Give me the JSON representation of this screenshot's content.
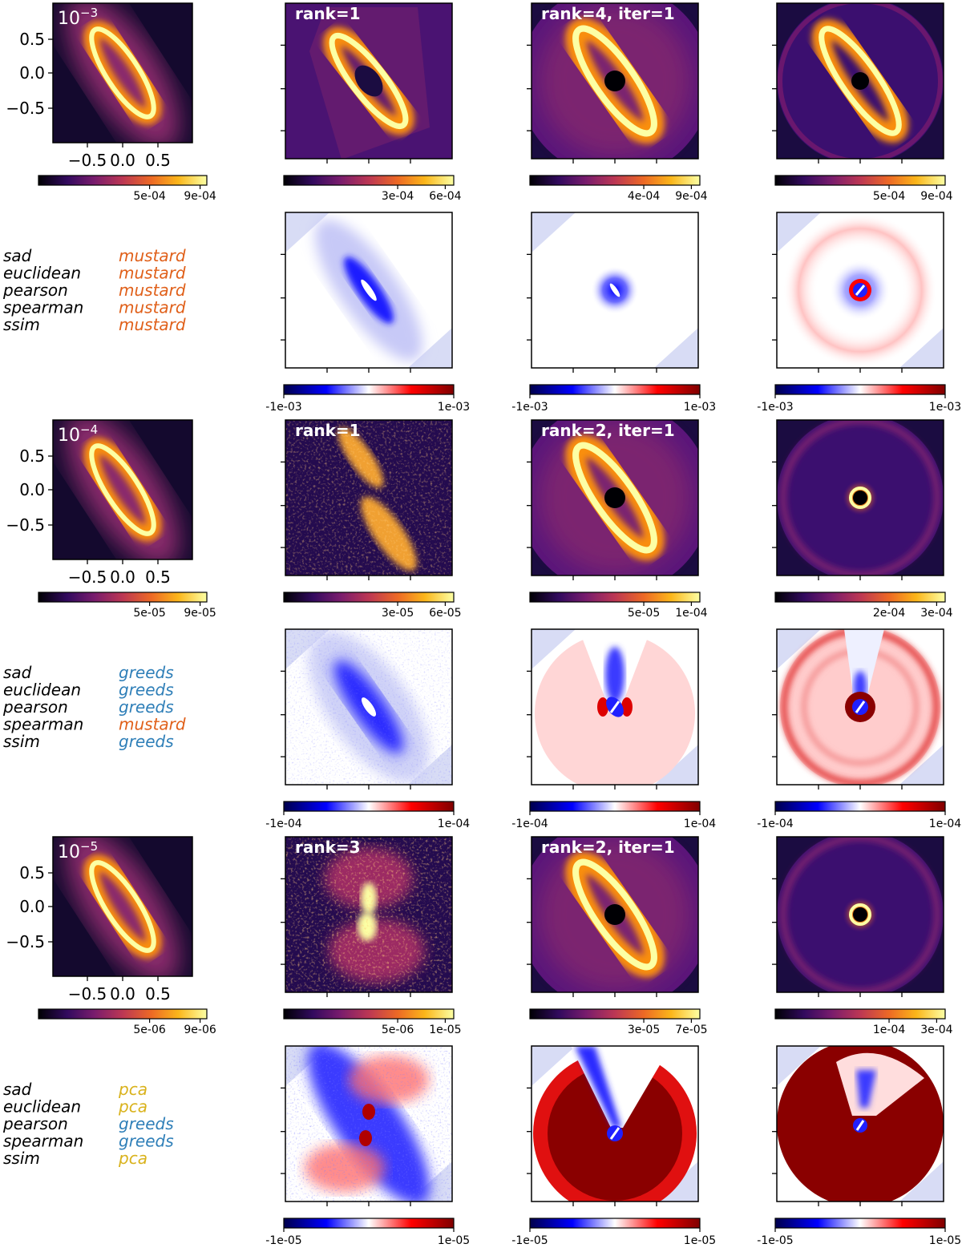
{
  "figure": {
    "rows": [
      {
        "ground_truth": {
          "label": "10",
          "exponent": "−3",
          "y_ticks": [
            "0.5",
            "0.0",
            "−0.5"
          ],
          "x_ticks": [
            "−0.5",
            "0.0",
            "0.5"
          ],
          "colorbar_ticks": [
            "5e-04",
            "9e-04"
          ]
        },
        "estimates": [
          {
            "label": "rank=1",
            "colorbar_ticks": [
              "3e-04",
              "6e-04"
            ],
            "style": "pca_wedge"
          },
          {
            "label": "rank=4, iter=1",
            "colorbar_ticks": [
              "4e-04",
              "9e-04"
            ],
            "style": "greeds_disk"
          },
          {
            "label": "",
            "colorbar_ticks": [
              "5e-04",
              "9e-04"
            ],
            "style": "mustard_disk"
          }
        ],
        "metric_choices": [
          {
            "metric": "sad",
            "winner": "mustard"
          },
          {
            "metric": "euclidean",
            "winner": "mustard"
          },
          {
            "metric": "pearson",
            "winner": "mustard"
          },
          {
            "metric": "spearman",
            "winner": "mustard"
          },
          {
            "metric": "ssim",
            "winner": "mustard"
          }
        ],
        "residual_colorbar_ticks": [
          "-1e-03",
          "1e-03"
        ],
        "residual_styles": [
          "res_pca_a",
          "res_greeds_a",
          "res_mustard_a"
        ]
      },
      {
        "ground_truth": {
          "label": "10",
          "exponent": "−4",
          "y_ticks": [
            "0.5",
            "0.0",
            "−0.5"
          ],
          "x_ticks": [
            "−0.5",
            "0.0",
            "0.5"
          ],
          "colorbar_ticks": [
            "5e-05",
            "9e-05"
          ]
        },
        "estimates": [
          {
            "label": "rank=1",
            "colorbar_ticks": [
              "3e-05",
              "6e-05"
            ],
            "style": "pca_noisy"
          },
          {
            "label": "rank=2, iter=1",
            "colorbar_ticks": [
              "5e-05",
              "1e-04"
            ],
            "style": "greeds_disk"
          },
          {
            "label": "",
            "colorbar_ticks": [
              "2e-04",
              "3e-04"
            ],
            "style": "mustard_ring"
          }
        ],
        "metric_choices": [
          {
            "metric": "sad",
            "winner": "greeds"
          },
          {
            "metric": "euclidean",
            "winner": "greeds"
          },
          {
            "metric": "pearson",
            "winner": "greeds"
          },
          {
            "metric": "spearman",
            "winner": "mustard"
          },
          {
            "metric": "ssim",
            "winner": "greeds"
          }
        ],
        "residual_colorbar_ticks": [
          "-1e-04",
          "1e-04"
        ],
        "residual_styles": [
          "res_pca_b",
          "res_greeds_b",
          "res_mustard_b"
        ]
      },
      {
        "ground_truth": {
          "label": "10",
          "exponent": "−5",
          "y_ticks": [
            "0.5",
            "0.0",
            "−0.5"
          ],
          "x_ticks": [
            "−0.5",
            "0.0",
            "0.5"
          ],
          "colorbar_ticks": [
            "5e-06",
            "9e-06"
          ]
        },
        "estimates": [
          {
            "label": "rank=3",
            "colorbar_ticks": [
              "5e-06",
              "1e-05"
            ],
            "style": "pca_cloud"
          },
          {
            "label": "rank=2, iter=1",
            "colorbar_ticks": [
              "3e-05",
              "7e-05"
            ],
            "style": "greeds_bright"
          },
          {
            "label": "",
            "colorbar_ticks": [
              "1e-04",
              "3e-04"
            ],
            "style": "mustard_ring"
          }
        ],
        "metric_choices": [
          {
            "metric": "sad",
            "winner": "pca"
          },
          {
            "metric": "euclidean",
            "winner": "pca"
          },
          {
            "metric": "pearson",
            "winner": "greeds"
          },
          {
            "metric": "spearman",
            "winner": "greeds"
          },
          {
            "metric": "ssim",
            "winner": "pca"
          }
        ],
        "residual_colorbar_ticks": [
          "-1e-05",
          "1e-05"
        ],
        "residual_styles": [
          "res_pca_c",
          "res_greeds_c",
          "res_mustard_c"
        ]
      }
    ],
    "method_colors": {
      "mustard": "#e0601a",
      "greeds": "#2f7fb8",
      "pca": "#d9b21c"
    },
    "colormaps": {
      "inferno": [
        "#000004",
        "#320a5e",
        "#781c6d",
        "#bc3754",
        "#ed6925",
        "#fbb61a",
        "#fcffa4"
      ],
      "seismic": [
        "#00004c",
        "#0000ff",
        "#ffffff",
        "#ff0000",
        "#800000"
      ]
    }
  }
}
